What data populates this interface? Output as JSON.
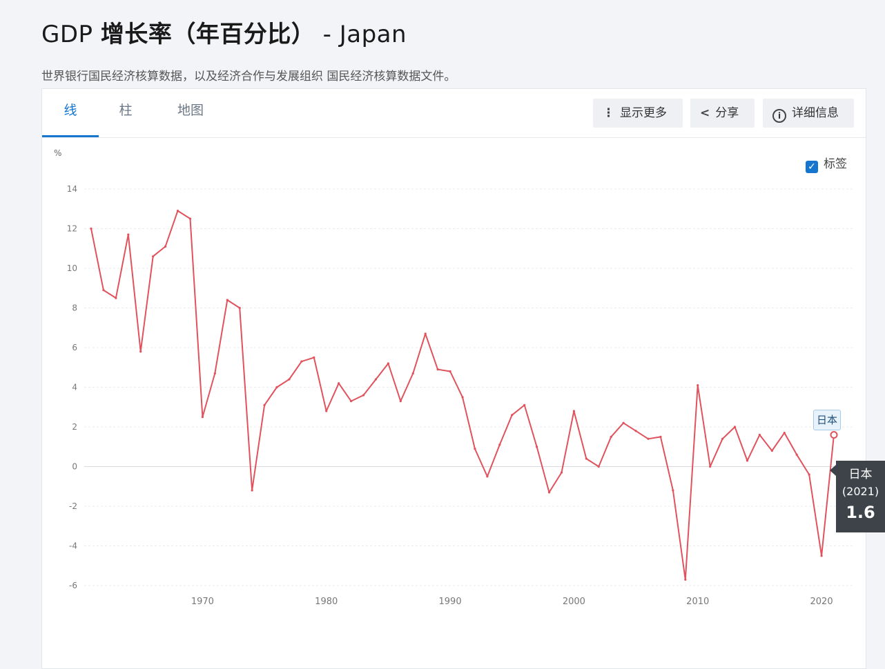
{
  "header": {
    "title_prefix": "GDP ",
    "title_main": "增长率（年百分比）",
    "title_suffix": " - Japan",
    "subtitle": "世界银行国民经济核算数据，以及经济合作与发展组织 国民经济核算数据文件。"
  },
  "tabs": [
    {
      "label": "线",
      "active": true
    },
    {
      "label": "柱",
      "active": false
    },
    {
      "label": "地图",
      "active": false
    }
  ],
  "toolbar": {
    "more_label": "显示更多",
    "share_label": "分享",
    "details_label": "详细信息"
  },
  "labels_toggle": {
    "label": "标签",
    "checked": true
  },
  "tooltip": {
    "country": "日本",
    "year": "(2021)",
    "value": "1.6"
  },
  "series_tag": "日本",
  "colors": {
    "line": "#e0525c",
    "accent": "#1576d0",
    "tooltip_bg": "#3e4349"
  },
  "chart_data": {
    "type": "line",
    "ylabel": "%",
    "xlabel": "",
    "ylim": [
      -6,
      14
    ],
    "yticks": [
      -6,
      -4,
      -2,
      0,
      2,
      4,
      6,
      8,
      10,
      12,
      14
    ],
    "xlim": [
      1961,
      2021
    ],
    "xticks": [
      1970,
      1980,
      1990,
      2000,
      2010,
      2020
    ],
    "grid": true,
    "series": [
      {
        "name": "日本",
        "x": [
          1961,
          1962,
          1963,
          1964,
          1965,
          1966,
          1967,
          1968,
          1969,
          1970,
          1971,
          1972,
          1973,
          1974,
          1975,
          1976,
          1977,
          1978,
          1979,
          1980,
          1981,
          1982,
          1983,
          1984,
          1985,
          1986,
          1987,
          1988,
          1989,
          1990,
          1991,
          1992,
          1993,
          1994,
          1995,
          1996,
          1997,
          1998,
          1999,
          2000,
          2001,
          2002,
          2003,
          2004,
          2005,
          2006,
          2007,
          2008,
          2009,
          2010,
          2011,
          2012,
          2013,
          2014,
          2015,
          2016,
          2017,
          2018,
          2019,
          2020,
          2021
        ],
        "values": [
          12.0,
          8.9,
          8.5,
          11.7,
          5.8,
          10.6,
          11.1,
          12.9,
          12.5,
          2.5,
          4.7,
          8.4,
          8.0,
          -1.2,
          3.1,
          4.0,
          4.4,
          5.3,
          5.5,
          2.8,
          4.2,
          3.3,
          3.6,
          4.4,
          5.2,
          3.3,
          4.7,
          6.7,
          4.9,
          4.8,
          3.5,
          0.9,
          -0.5,
          1.1,
          2.6,
          3.1,
          1.0,
          -1.3,
          -0.3,
          2.8,
          0.4,
          0.0,
          1.5,
          2.2,
          1.8,
          1.4,
          1.5,
          -1.2,
          -5.7,
          4.1,
          0.0,
          1.4,
          2.0,
          0.3,
          1.6,
          0.8,
          1.7,
          0.6,
          -0.4,
          -4.5,
          1.6
        ]
      }
    ],
    "highlight": {
      "x": 2021,
      "value": 1.6
    }
  }
}
